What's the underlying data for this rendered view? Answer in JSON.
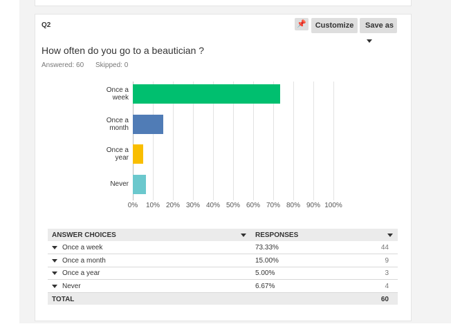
{
  "header": {
    "question_number": "Q2",
    "buttons": [
      "Customize",
      "Save as"
    ]
  },
  "question": {
    "title": "How often do you go to a beautician ?",
    "answered": "Answered: 60",
    "skipped": "Skipped: 0"
  },
  "chart_data": {
    "type": "bar",
    "orientation": "horizontal",
    "categories": [
      "Once a week",
      "Once a month",
      "Once a year",
      "Never"
    ],
    "values": [
      73.33,
      15,
      5,
      6.67
    ],
    "colors": [
      "#00bf6f",
      "#507cb6",
      "#f9be00",
      "#6bc8cd"
    ],
    "xlim": [
      0,
      100
    ],
    "xticks": [
      {
        "value": 0,
        "label": "0%"
      },
      {
        "value": 10,
        "label": "10%"
      },
      {
        "value": 20,
        "label": "20%"
      },
      {
        "value": 30,
        "label": "30%"
      },
      {
        "value": 40,
        "label": "40%"
      },
      {
        "value": 50,
        "label": "50%"
      },
      {
        "value": 60,
        "label": "60%"
      },
      {
        "value": 70,
        "label": "70%"
      },
      {
        "value": 80,
        "label": "80%"
      },
      {
        "value": 90,
        "label": "90%"
      },
      {
        "value": 100,
        "label": "100%"
      }
    ],
    "grid": true
  },
  "table": {
    "columns": [
      "ANSWER CHOICES",
      "RESPONSES"
    ],
    "rows": [
      [
        "Once a week",
        "73.33%",
        44
      ],
      [
        "Once a month",
        "15.00%",
        9
      ],
      [
        "Once a year",
        "5.00%",
        3
      ],
      [
        "Never",
        "6.67%",
        4
      ]
    ],
    "total": [
      "TOTAL",
      60
    ]
  }
}
